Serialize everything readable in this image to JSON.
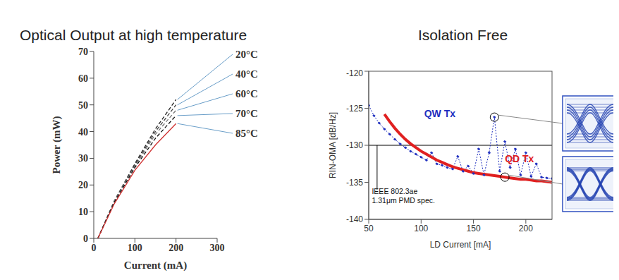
{
  "chart_data": [
    {
      "type": "line",
      "title": "Optical Output at high temperature",
      "x_label": "Current (mA)",
      "y_label": "Power (mW)",
      "x": [
        10,
        50,
        100,
        150,
        200
      ],
      "series": [
        {
          "name": "20°C",
          "color": "#222222",
          "line_style": "dashed",
          "values": [
            0,
            14,
            28,
            41,
            52
          ]
        },
        {
          "name": "40°C",
          "color": "#444444",
          "line_style": "dashed",
          "values": [
            0,
            14,
            27.5,
            40,
            50
          ]
        },
        {
          "name": "60°C",
          "color": "#777777",
          "line_style": "dashed",
          "values": [
            0,
            13.8,
            27,
            39,
            48
          ]
        },
        {
          "name": "70°C",
          "color": "#111111",
          "line_style": "dashed",
          "values": [
            0,
            13.5,
            26.5,
            37.5,
            46
          ]
        },
        {
          "name": "85°C",
          "color": "#d03030",
          "line_style": "solid",
          "values": [
            0,
            13,
            25.5,
            35,
            43
          ]
        }
      ],
      "xlim": [
        0,
        300
      ],
      "xticks": [
        0,
        100,
        200,
        300
      ],
      "ylim": [
        0,
        70
      ],
      "yticks": [
        0,
        10,
        20,
        30,
        40,
        50,
        60,
        70
      ],
      "grid": false
    },
    {
      "type": "line",
      "title": "Isolation Free",
      "x_label": "LD Current [mA]",
      "y_label": "RIN-OMA [dB/Hz]",
      "x": [
        50,
        55,
        60,
        65,
        70,
        75,
        80,
        85,
        90,
        95,
        100,
        105,
        110,
        115,
        120,
        125,
        130,
        135,
        140,
        145,
        150,
        155,
        160,
        165,
        170,
        175,
        180,
        185,
        190,
        195,
        200,
        205,
        210,
        215,
        220,
        225
      ],
      "series": [
        {
          "name": "QW Tx",
          "color": "#2030c0",
          "line_style": "dotted",
          "marker": "circle",
          "values": [
            -124.6,
            -126,
            -127,
            -127.8,
            -128.5,
            -129.2,
            -129.8,
            -130.3,
            -130.8,
            -131.2,
            -131.6,
            -132,
            -131,
            -132.5,
            -132.7,
            -133,
            -133.2,
            -131.5,
            -133.5,
            -132.8,
            -133.8,
            -130.5,
            -134,
            -131,
            -126.2,
            -133.5,
            -129.5,
            -133,
            -130.5,
            -134,
            -131,
            -134.2,
            -132.5,
            -134.3,
            -134.4,
            -134.5
          ]
        },
        {
          "name": "QD Tx",
          "color": "#e02020",
          "line_style": "solid",
          "values": [
            null,
            null,
            null,
            -125.8,
            -126.8,
            -127.7,
            -128.5,
            -129.2,
            -129.8,
            -130.3,
            -130.8,
            -131.2,
            -131.6,
            -132,
            -132.3,
            -132.6,
            -132.9,
            -133.1,
            -133.3,
            -133.5,
            -133.7,
            -133.8,
            -133.9,
            -134,
            -134.1,
            -134.2,
            -134.3,
            -134.4,
            -134.5,
            -134.6,
            -134.6,
            -134.7,
            -134.8,
            -134.8,
            -134.9,
            -135
          ]
        }
      ],
      "reference_line": {
        "value": -130,
        "label": [
          "IEEE 802.3ae",
          "1.31μm PMD spec."
        ]
      },
      "highlight_points": [
        {
          "x": 170,
          "y": -126.2
        },
        {
          "x": 180,
          "y": -134.3
        }
      ],
      "xlim": [
        50,
        225
      ],
      "xticks": [
        50,
        100,
        150,
        200
      ],
      "ylim": [
        -140,
        -120
      ],
      "yticks": [
        -140,
        -135,
        -130,
        -125,
        -120
      ],
      "grid": false
    }
  ]
}
